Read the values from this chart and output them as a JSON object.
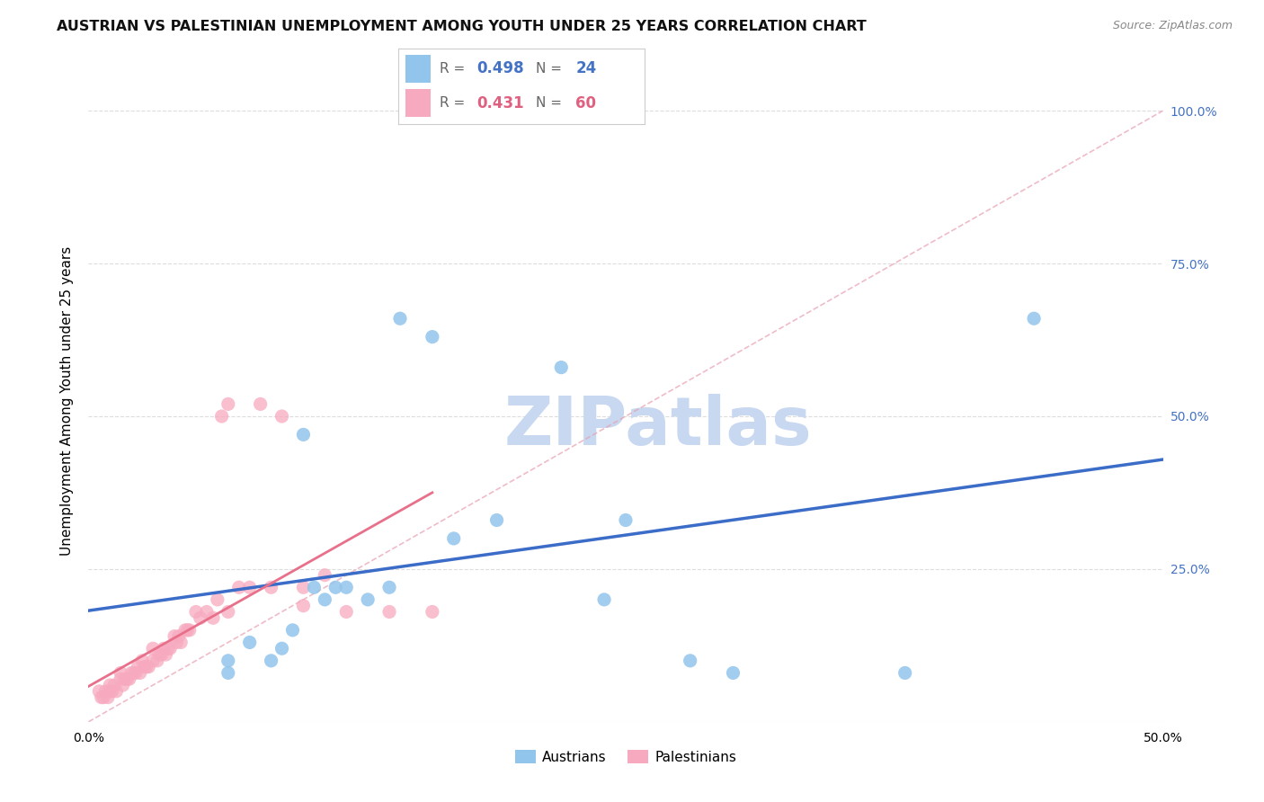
{
  "title": "AUSTRIAN VS PALESTINIAN UNEMPLOYMENT AMONG YOUTH UNDER 25 YEARS CORRELATION CHART",
  "source": "Source: ZipAtlas.com",
  "ylabel": "Unemployment Among Youth under 25 years",
  "xlim": [
    0.0,
    0.5
  ],
  "ylim": [
    0.0,
    1.05
  ],
  "yticks": [
    0.0,
    0.25,
    0.5,
    0.75,
    1.0
  ],
  "ytick_labels": [
    "",
    "25.0%",
    "50.0%",
    "75.0%",
    "100.0%"
  ],
  "xticks": [
    0.0,
    0.1,
    0.2,
    0.3,
    0.4,
    0.5
  ],
  "xtick_labels": [
    "0.0%",
    "",
    "",
    "",
    "",
    "50.0%"
  ],
  "austrians_x": [
    0.065,
    0.065,
    0.075,
    0.085,
    0.09,
    0.095,
    0.1,
    0.105,
    0.11,
    0.115,
    0.12,
    0.13,
    0.14,
    0.145,
    0.16,
    0.17,
    0.19,
    0.22,
    0.24,
    0.25,
    0.28,
    0.3,
    0.38,
    0.44
  ],
  "austrians_y": [
    0.08,
    0.1,
    0.13,
    0.1,
    0.12,
    0.15,
    0.47,
    0.22,
    0.2,
    0.22,
    0.22,
    0.2,
    0.22,
    0.66,
    0.63,
    0.3,
    0.33,
    0.58,
    0.2,
    0.33,
    0.1,
    0.08,
    0.08,
    0.66
  ],
  "palestinians_x": [
    0.005,
    0.006,
    0.007,
    0.008,
    0.009,
    0.01,
    0.01,
    0.011,
    0.012,
    0.013,
    0.015,
    0.015,
    0.016,
    0.017,
    0.018,
    0.019,
    0.02,
    0.021,
    0.022,
    0.023,
    0.024,
    0.025,
    0.026,
    0.027,
    0.028,
    0.03,
    0.03,
    0.032,
    0.033,
    0.034,
    0.035,
    0.036,
    0.037,
    0.038,
    0.04,
    0.041,
    0.042,
    0.043,
    0.045,
    0.046,
    0.047,
    0.05,
    0.052,
    0.055,
    0.058,
    0.06,
    0.062,
    0.065,
    0.065,
    0.07,
    0.075,
    0.08,
    0.085,
    0.09,
    0.1,
    0.1,
    0.11,
    0.12,
    0.14,
    0.16
  ],
  "palestinians_y": [
    0.05,
    0.04,
    0.04,
    0.05,
    0.04,
    0.05,
    0.06,
    0.05,
    0.06,
    0.05,
    0.07,
    0.08,
    0.06,
    0.07,
    0.07,
    0.07,
    0.08,
    0.08,
    0.08,
    0.09,
    0.08,
    0.1,
    0.09,
    0.09,
    0.09,
    0.1,
    0.12,
    0.1,
    0.11,
    0.11,
    0.12,
    0.11,
    0.12,
    0.12,
    0.14,
    0.13,
    0.14,
    0.13,
    0.15,
    0.15,
    0.15,
    0.18,
    0.17,
    0.18,
    0.17,
    0.2,
    0.5,
    0.52,
    0.18,
    0.22,
    0.22,
    0.52,
    0.22,
    0.5,
    0.19,
    0.22,
    0.24,
    0.18,
    0.18,
    0.18
  ],
  "r_austrians": 0.498,
  "n_austrians": 24,
  "r_palestinians": 0.431,
  "n_palestinians": 60,
  "color_austrians": "#92C5EC",
  "color_palestinians": "#F7AABF",
  "line_color_austrians": "#3B6CC7",
  "line_color_palestinians": "#E8708A",
  "diagonal_color": "#E8A0B0",
  "background_color": "#FFFFFF",
  "watermark_color": "#C8D8F0",
  "grid_color": "#DDDDDD",
  "title_fontsize": 11.5,
  "label_fontsize": 11,
  "tick_fontsize": 10,
  "tick_color_right": "#4472C4",
  "legend_r_color_austrians": "#4472C4",
  "legend_r_color_palestinians": "#E06080"
}
